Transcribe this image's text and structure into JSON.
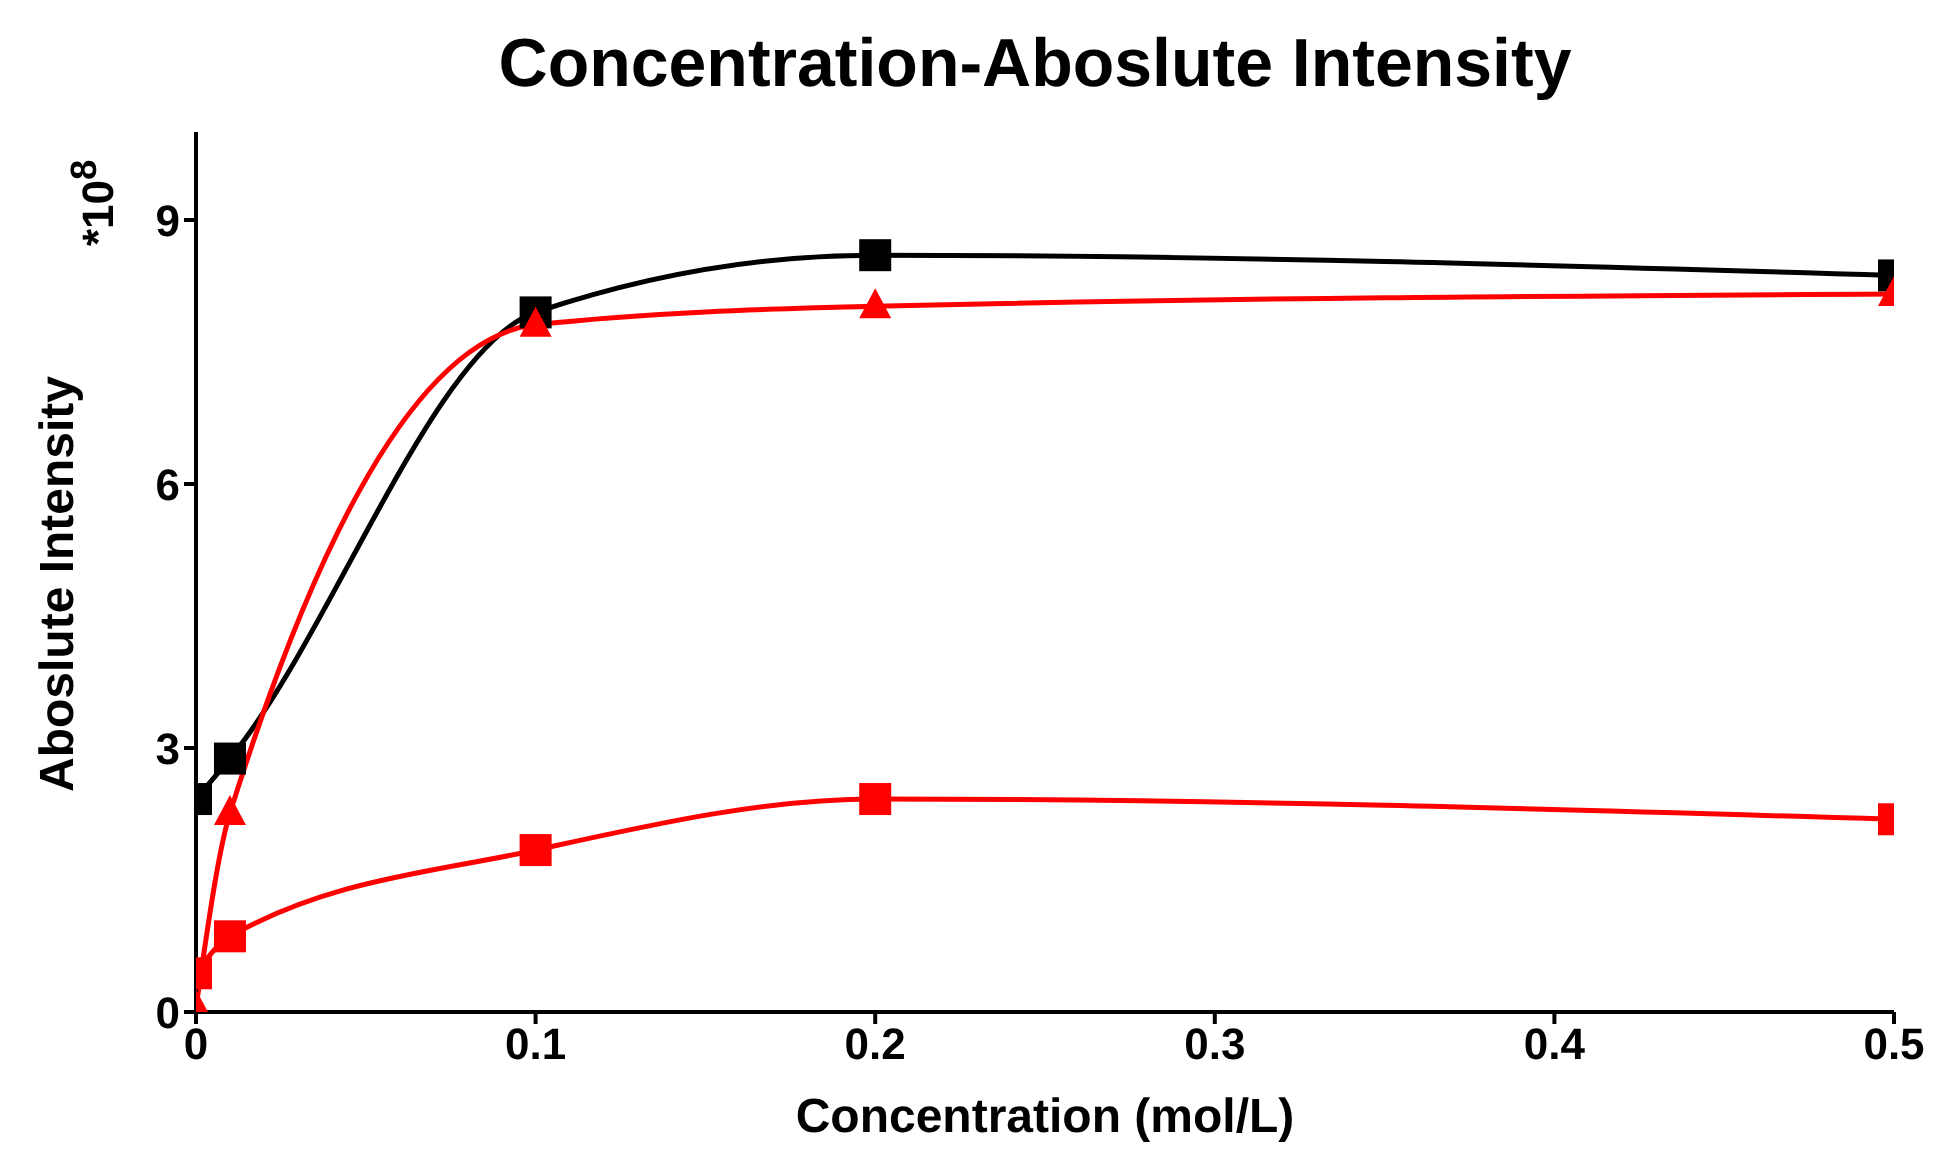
{
  "chart_data": {
    "type": "line",
    "title": "Concentration-Aboslute Intensity",
    "xlabel": "Concentration (mol/L)",
    "ylabel": "Aboslute Intensity",
    "annotations": [
      "*10$^{8}$"
    ],
    "x": [
      0,
      0.01,
      0.1,
      0.2,
      0.5
    ],
    "series": [
      {
        "color": "#000000",
        "marker": "square",
        "values": [
          2.42,
          2.88,
          7.95,
          8.6,
          8.37
        ]
      },
      {
        "color": "#ff0000",
        "marker": "triangle",
        "values": [
          0.05,
          2.26,
          7.81,
          8.02,
          8.16
        ]
      },
      {
        "color": "#ff0000",
        "marker": "square",
        "values": [
          0.44,
          0.86,
          1.84,
          2.42,
          2.19
        ]
      }
    ],
    "xlim": [
      0,
      0.5
    ],
    "xticks": [
      0,
      0.1,
      0.2,
      0.3,
      0.4,
      0.5
    ],
    "ylim": [
      0,
      10
    ],
    "yticks": [
      0,
      3,
      6,
      9
    ],
    "grid": false,
    "legend": false,
    "line_style": "solid"
  }
}
